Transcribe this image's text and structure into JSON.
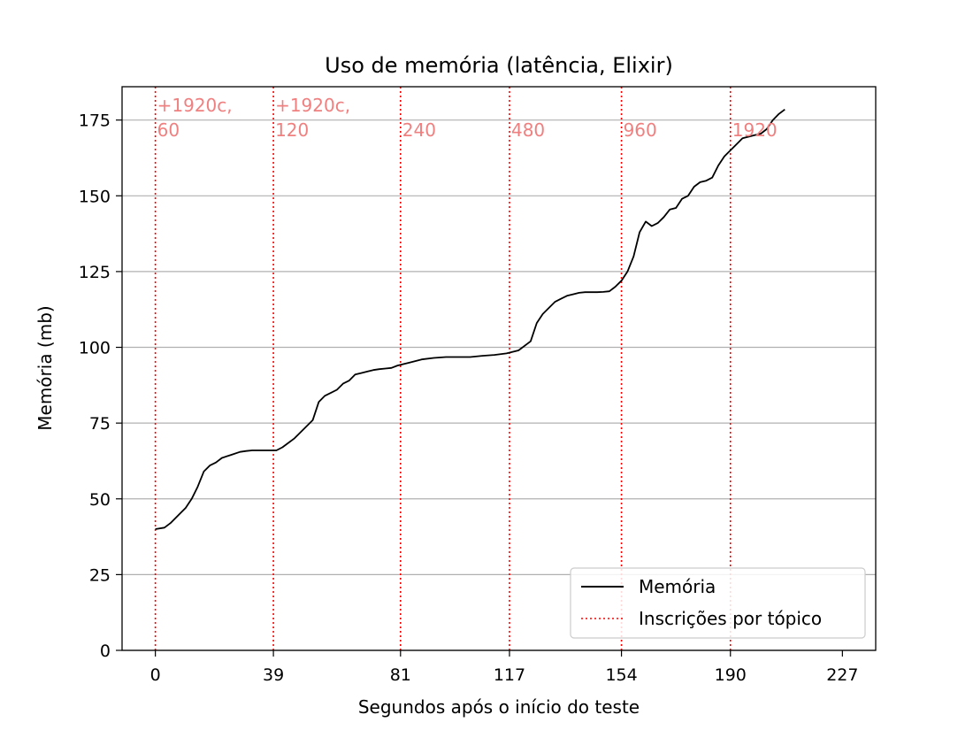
{
  "chart_data": {
    "type": "line",
    "title": "Uso de memória (latência, Elixir)",
    "xlabel": "Segundos após o início do teste",
    "ylabel": "Memória (mb)",
    "xlim": [
      -11,
      238
    ],
    "ylim": [
      0,
      186
    ],
    "xticks": [
      0,
      39,
      81,
      117,
      154,
      190,
      227
    ],
    "yticks": [
      0,
      25,
      50,
      75,
      100,
      125,
      150,
      175
    ],
    "grid": "horizontal",
    "legend_position": "lower-right",
    "legend": [
      "Memória",
      "Inscrições por tópico"
    ],
    "colors": {
      "memory": "#000000",
      "markers": "#ff0000",
      "annotations": "#f08080"
    },
    "series": [
      {
        "name": "Memória",
        "x": [
          0,
          3,
          5,
          8,
          10,
          12,
          14,
          16,
          18,
          20,
          22,
          25,
          28,
          30,
          32,
          36,
          40,
          42,
          44,
          46,
          48,
          50,
          52,
          54,
          56,
          58,
          60,
          62,
          64,
          66,
          68,
          70,
          72,
          74,
          76,
          78,
          80,
          84,
          88,
          92,
          96,
          100,
          104,
          108,
          112,
          116,
          120,
          124,
          126,
          128,
          130,
          132,
          134,
          136,
          138,
          140,
          142,
          144,
          146,
          148,
          150,
          152,
          154,
          156,
          158,
          160,
          162,
          164,
          166,
          168,
          170,
          172,
          174,
          176,
          178,
          180,
          182,
          184,
          186,
          188,
          190,
          192,
          194,
          196,
          198,
          200,
          202,
          204,
          206,
          208
        ],
        "y": [
          40,
          40.5,
          42,
          45,
          47,
          50,
          54,
          59,
          61,
          62,
          63.5,
          64.5,
          65.5,
          65.8,
          66,
          66,
          66,
          67,
          68.5,
          70,
          72,
          74,
          76,
          82,
          84,
          85,
          86,
          88,
          89,
          91,
          91.5,
          92,
          92.5,
          92.8,
          93,
          93.2,
          94,
          95,
          96,
          96.5,
          96.8,
          96.8,
          96.8,
          97.2,
          97.5,
          98,
          99,
          102,
          108,
          111,
          113,
          115,
          116,
          117,
          117.5,
          118,
          118.2,
          118.2,
          118.2,
          118.3,
          118.5,
          120,
          122,
          125,
          130,
          138,
          141.5,
          140,
          141,
          143,
          145.5,
          146,
          149,
          150,
          153,
          154.5,
          155,
          156,
          160,
          163,
          165,
          167,
          169,
          169.5,
          170,
          170.5,
          172,
          175,
          177,
          178.5
        ]
      }
    ],
    "markers": [
      {
        "x": 0,
        "label": "+1920c,\n60"
      },
      {
        "x": 39,
        "label": "+1920c,\n120"
      },
      {
        "x": 81,
        "label": "240"
      },
      {
        "x": 117,
        "label": "480"
      },
      {
        "x": 154,
        "label": "960"
      },
      {
        "x": 190,
        "label": "1920"
      }
    ]
  }
}
